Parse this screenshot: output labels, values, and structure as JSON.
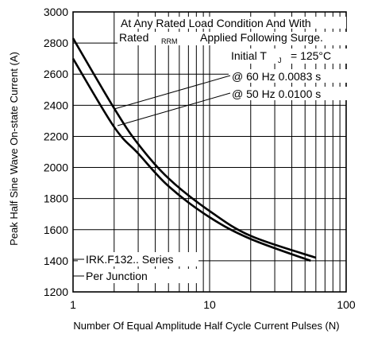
{
  "chart_data": {
    "type": "line",
    "xscale": "log",
    "xlim": [
      1,
      100
    ],
    "ylim": [
      1200,
      3000
    ],
    "xticks": [
      1,
      10,
      100
    ],
    "xtick_labels": [
      "1",
      "10",
      "100"
    ],
    "yticks": [
      1200,
      1400,
      1600,
      1800,
      2000,
      2200,
      2400,
      2600,
      2800,
      3000
    ],
    "ytick_labels": [
      "1200",
      "1400",
      "1600",
      "1800",
      "2000",
      "2200",
      "2400",
      "2600",
      "2800",
      "3000"
    ],
    "xlabel": "Number Of Equal Amplitude Half Cycle Current Pulses (N)",
    "ylabel": "Peak Half Sine Wave On-state Current (A)",
    "grid": true,
    "series": [
      {
        "name": "@ 60 Hz 0.0083 s",
        "x": [
          1,
          2,
          3,
          5,
          10,
          20,
          60
        ],
        "y": [
          2830,
          2380,
          2150,
          1930,
          1720,
          1560,
          1420
        ]
      },
      {
        "name": "@ 50 Hz 0.0100 s",
        "x": [
          1,
          2,
          3,
          5,
          10,
          20,
          55
        ],
        "y": [
          2700,
          2260,
          2090,
          1880,
          1680,
          1540,
          1400
        ]
      }
    ],
    "annotations": {
      "line1": "At Any Rated Load Condition And With",
      "line2_a": "Rated",
      "line2_sub": "RRM",
      "line2_b": "Applied Following Surge.",
      "line3": "Initial T",
      "line3_sub": "J",
      "line3_value": "= 125°C",
      "series_label_60": "@ 60 Hz 0.0083 s",
      "series_label_50": "@ 50 Hz 0.0100 s",
      "series_name": "IRK.F132.. Series",
      "junction": "Per Junction"
    }
  }
}
